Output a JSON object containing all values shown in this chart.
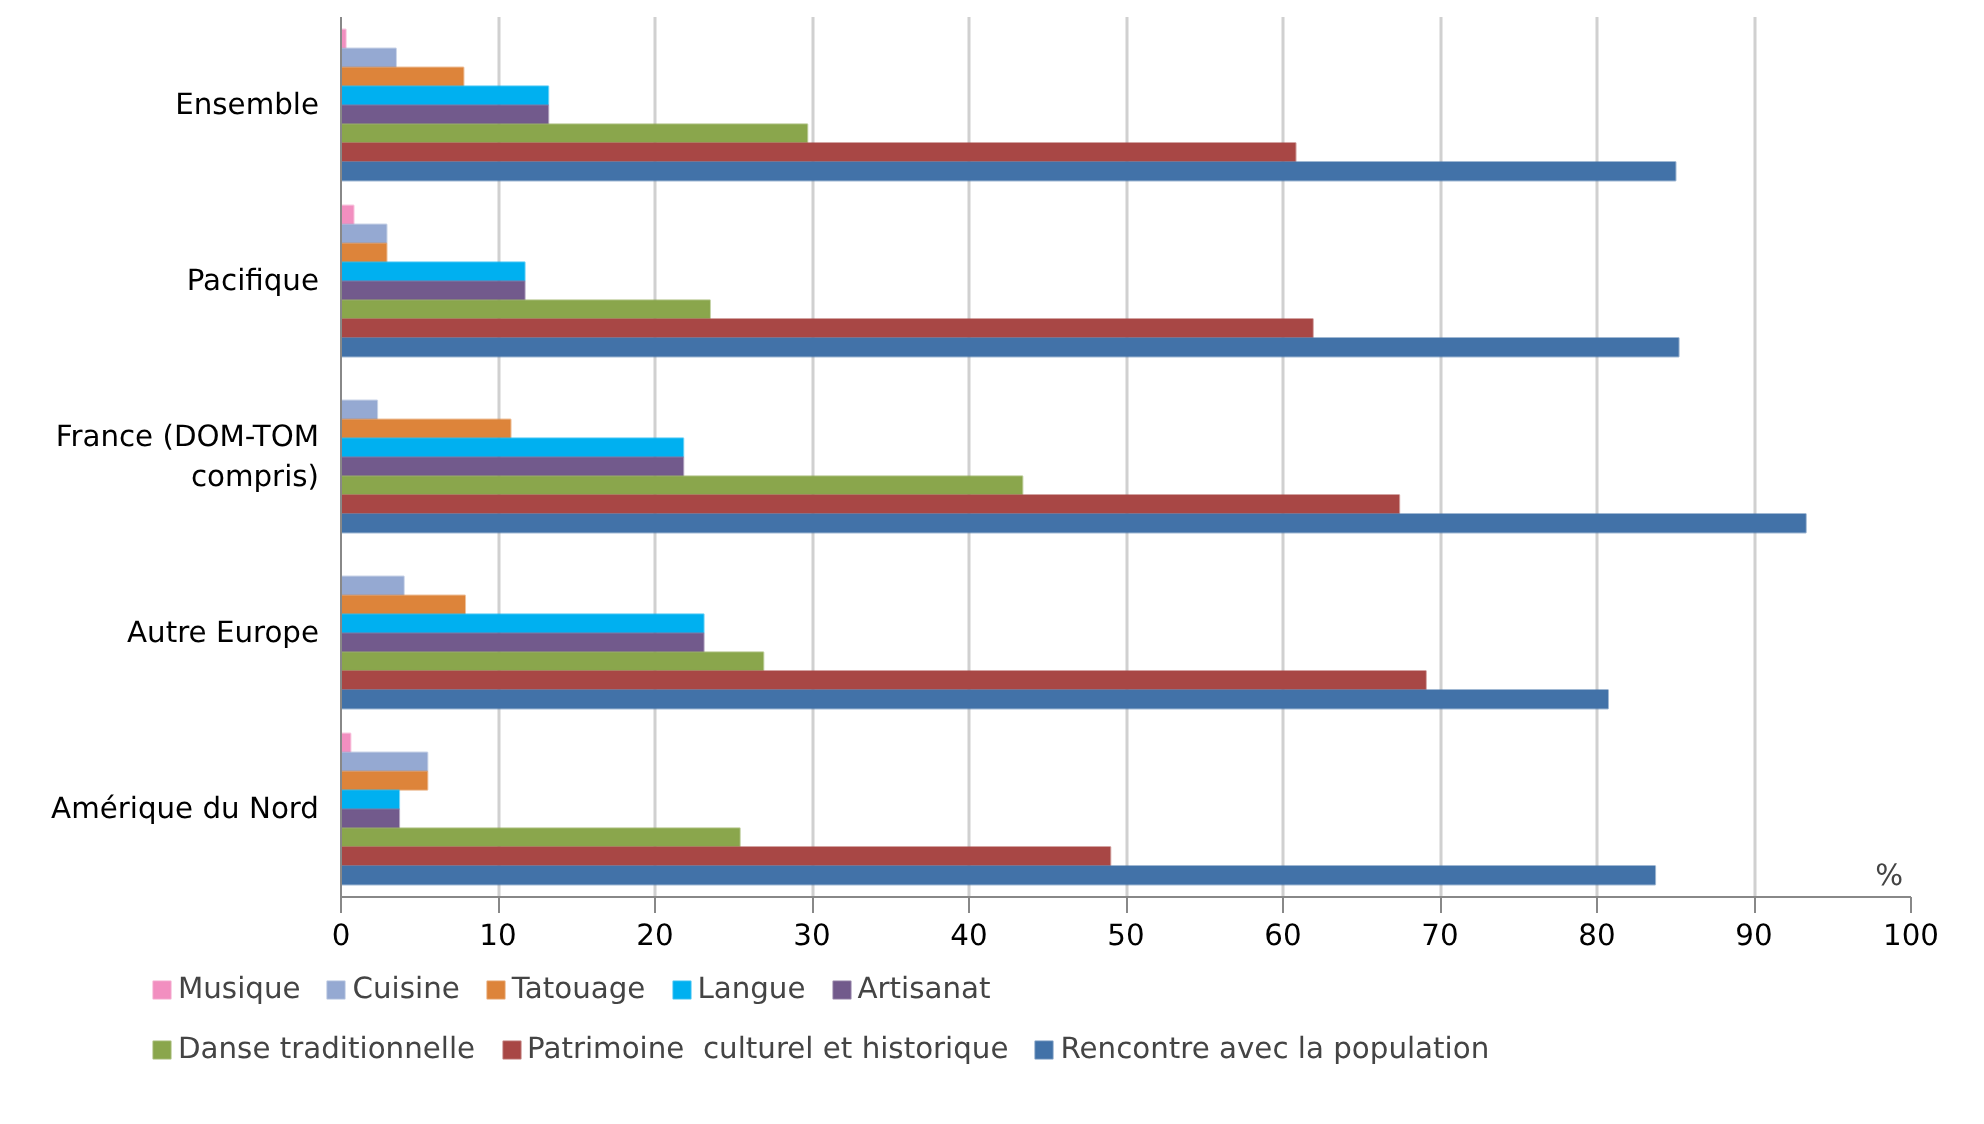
{
  "chart_data": {
    "type": "bar",
    "orientation": "horizontal",
    "xlabel": "%",
    "categories": [
      "Ensemble",
      "Pacifique",
      "France (DOM-TOM compris)",
      "Autre Europe",
      "Amérique du Nord"
    ],
    "series": [
      {
        "name": "Musique",
        "color": "#f28fc0",
        "values": [
          0.3,
          0.8,
          0,
          0,
          0.6
        ]
      },
      {
        "name": "Cuisine",
        "color": "#95a9d2",
        "values": [
          3.5,
          2.9,
          2.3,
          4.0,
          5.5
        ]
      },
      {
        "name": "Tatouage",
        "color": "#dd843a",
        "values": [
          7.8,
          2.9,
          10.8,
          7.9,
          5.5
        ]
      },
      {
        "name": "Langue",
        "color": "#00b0f0",
        "values": [
          13.2,
          11.7,
          21.8,
          23.1,
          3.7
        ]
      },
      {
        "name": "Artisanat",
        "color": "#725a8c",
        "values": [
          13.2,
          11.7,
          21.8,
          23.1,
          3.7
        ]
      },
      {
        "name": "Danse traditionnelle",
        "color": "#8aa64c",
        "values": [
          29.7,
          23.5,
          43.4,
          26.9,
          25.4
        ]
      },
      {
        "name": "Patrimoine  culturel et historique",
        "color": "#a84745",
        "values": [
          60.8,
          61.9,
          67.4,
          69.1,
          49.0
        ]
      },
      {
        "name": "Rencontre avec la population",
        "color": "#4272a8",
        "values": [
          85.0,
          85.2,
          93.3,
          80.7,
          83.7
        ]
      }
    ],
    "xlim": [
      0,
      100
    ],
    "xticks": [
      0,
      10,
      20,
      30,
      40,
      50,
      60,
      70,
      80,
      90,
      100
    ],
    "grid": "x",
    "legend": "bottom"
  }
}
